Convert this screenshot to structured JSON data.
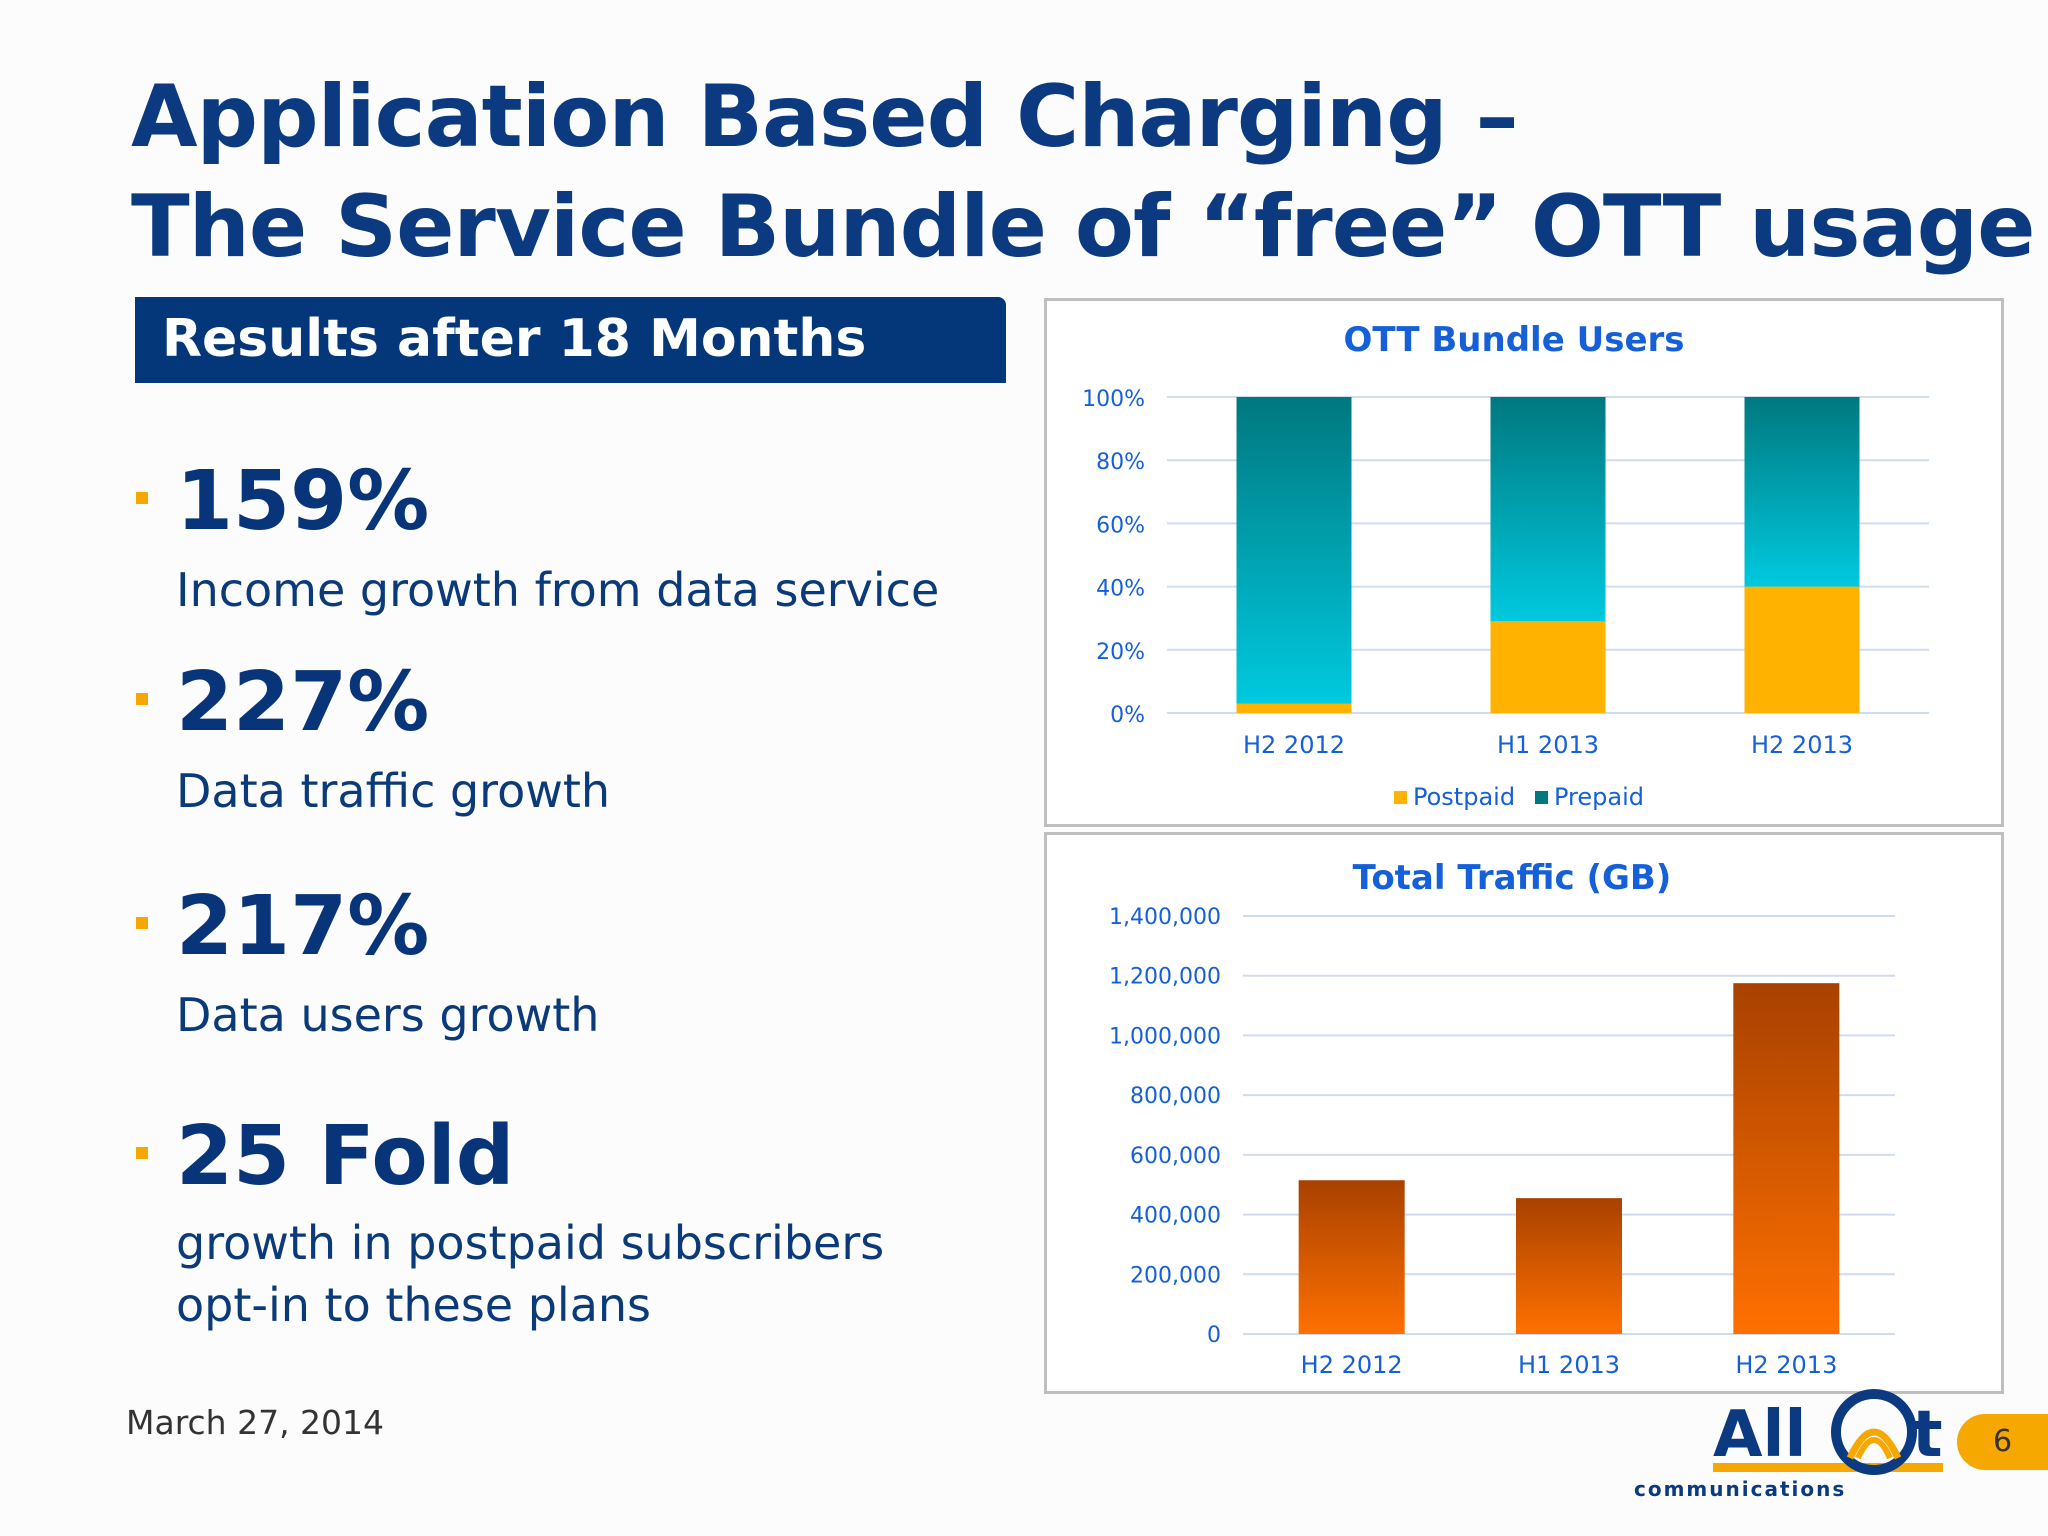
{
  "slide": {
    "title_line1": "Application Based Charging –",
    "title_line2": "The Service Bundle of “free” OTT usage",
    "section_header": "Results after 18 Months",
    "date": "March 27, 2014",
    "page_number": "6",
    "logo_text": "All",
    "logo_tail": "t",
    "logo_sub": "communications"
  },
  "stats": [
    {
      "value": "159%",
      "desc_lines": [
        "Income growth from data service"
      ]
    },
    {
      "value": "227%",
      "desc_lines": [
        "Data traffic growth"
      ]
    },
    {
      "value": "217%",
      "desc_lines": [
        "Data users growth"
      ]
    },
    {
      "value": "25 Fold",
      "desc_lines": [
        "growth in postpaid subscribers",
        "opt-in to these plans"
      ]
    }
  ],
  "colors": {
    "accent_orange": "#f6a800",
    "navy": "#04367a",
    "chart_blue_text": "#1560d8",
    "prepaid_top": "#00787f",
    "prepaid_bottom": "#00c9df",
    "postpaid": "#ffb300",
    "traffic_top": "#a84100",
    "traffic_bottom": "#ff7000"
  },
  "chart_data": [
    {
      "type": "bar",
      "stacked": true,
      "title": "OTT Bundle Users",
      "categories": [
        "H2 2012",
        "H1 2013",
        "H2 2013"
      ],
      "series": [
        {
          "name": "Postpaid",
          "values": [
            3,
            29,
            40
          ]
        },
        {
          "name": "Prepaid",
          "values": [
            97,
            71,
            60
          ]
        }
      ],
      "ylim": [
        0,
        100
      ],
      "yticks": [
        "0%",
        "20%",
        "40%",
        "60%",
        "80%",
        "100%"
      ],
      "grid": true,
      "legend": "bottom"
    },
    {
      "type": "bar",
      "title": "Total Traffic (GB)",
      "categories": [
        "H2 2012",
        "H1 2013",
        "H2 2013"
      ],
      "values": [
        515000,
        455000,
        1175000
      ],
      "ylim": [
        0,
        1400000
      ],
      "yticks": [
        "0",
        "200,000",
        "400,000",
        "600,000",
        "800,000",
        "1,000,000",
        "1,200,000",
        "1,400,000"
      ],
      "grid": true
    }
  ]
}
